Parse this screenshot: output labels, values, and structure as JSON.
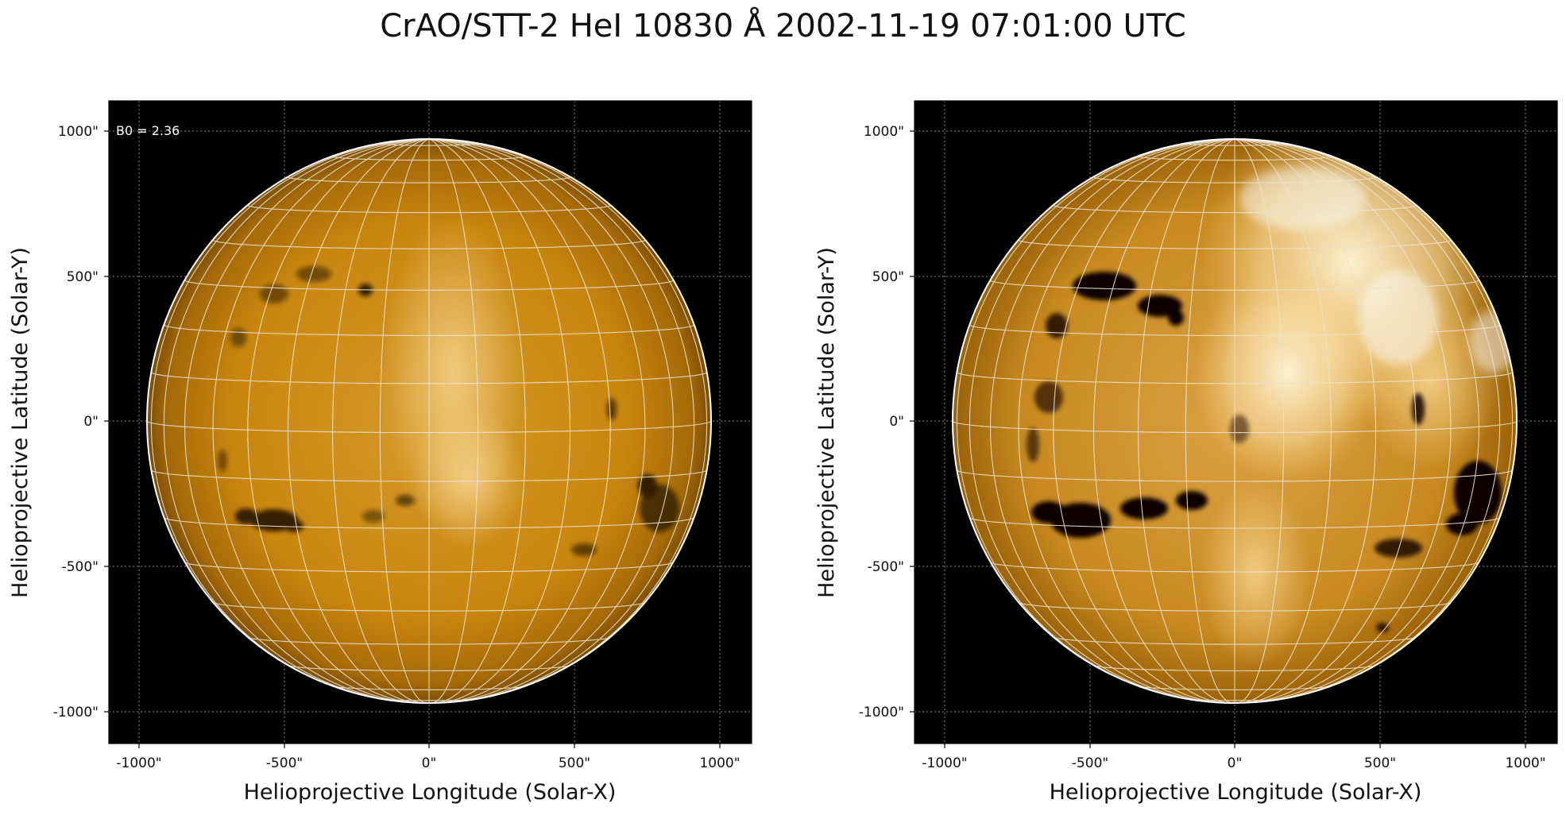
{
  "figure": {
    "title": "CrAO/STT-2 HeI 10830 Å 2002-11-19 07:01:00 UTC"
  },
  "panels": [
    {
      "id": "left",
      "annotation": "B0 = 2.36",
      "xlabel": "Helioprojective Longitude (Solar-X)",
      "ylabel": "Helioprojective Latitude (Solar-Y)",
      "xticks": [
        "-1000\"",
        "-500\"",
        "0\"",
        "500\"",
        "1000\""
      ],
      "yticks": [
        "1000\"",
        "500\"",
        "0\"",
        "-500\"",
        "-1000\""
      ],
      "contrast": "normal"
    },
    {
      "id": "right",
      "annotation": "",
      "xlabel": "Helioprojective Longitude (Solar-X)",
      "ylabel": "Helioprojective Latitude (Solar-Y)",
      "xticks": [
        "-1000\"",
        "-500\"",
        "0\"",
        "500\"",
        "1000\""
      ],
      "yticks": [
        "1000\"",
        "500\"",
        "0\"",
        "-500\"",
        "-1000\""
      ],
      "contrast": "enhanced"
    }
  ],
  "colors": {
    "background": "#000000",
    "disk_base": "#c8860e",
    "disk_bright": "#f2c46a",
    "grid": "#e9e2d0",
    "limb": "#ffffff",
    "filament": "#1a0c00"
  }
}
